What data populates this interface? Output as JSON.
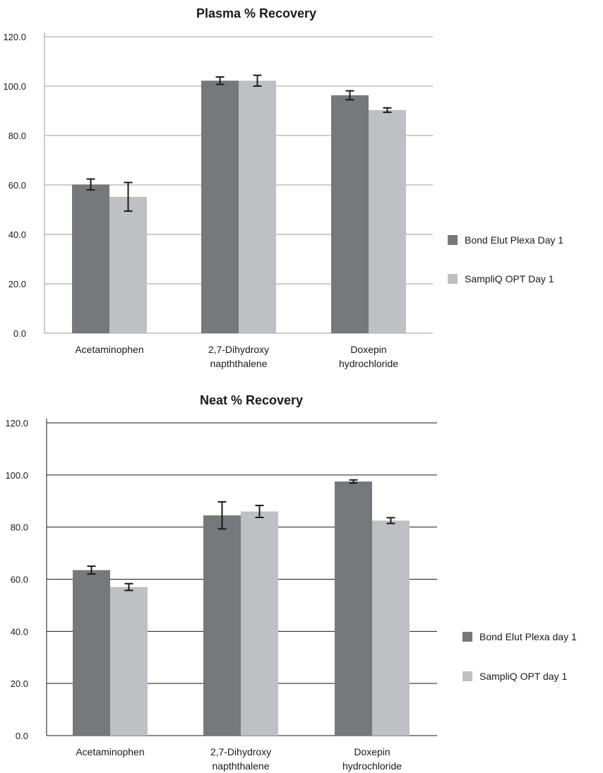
{
  "chart_data": [
    {
      "type": "bar",
      "title": "Plasma % Recovery",
      "categories": [
        [
          "Acetaminophen"
        ],
        [
          "2,7-Dihydroxy",
          "napththalene"
        ],
        [
          "Doxepin",
          "hydrochloride"
        ]
      ],
      "series": [
        {
          "name": "Bond Elut Plexa Day 1",
          "values": [
            60.2,
            102.2,
            96.3
          ],
          "error": [
            2.2,
            1.5,
            1.8
          ]
        },
        {
          "name": "SampliQ OPT Day 1",
          "values": [
            55.2,
            102.2,
            90.3
          ],
          "error": [
            5.8,
            2.2,
            0.9
          ]
        }
      ],
      "yticks": [
        "0.0",
        "20.0",
        "40.0",
        "60.0",
        "80.0",
        "100.0",
        "120.0"
      ],
      "ylim": [
        0,
        120
      ],
      "grid": true,
      "legend_position": "right",
      "colors": [
        "#77787b",
        "#bfc0c3"
      ],
      "gridline_color": "#9b9b9b",
      "xlabel": "",
      "ylabel": ""
    },
    {
      "type": "bar",
      "title": "Neat % Recovery",
      "categories": [
        [
          "Acetaminophen"
        ],
        [
          "2,7-Dihydroxy",
          "napththalene"
        ],
        [
          "Doxepin",
          "hydrochloride"
        ]
      ],
      "series": [
        {
          "name": "Bond Elut Plexa day 1",
          "values": [
            63.5,
            84.5,
            97.5
          ],
          "error": [
            1.5,
            5.2,
            0.6
          ]
        },
        {
          "name": "SampliQ OPT day 1",
          "values": [
            57.0,
            86.0,
            82.5
          ],
          "error": [
            1.3,
            2.3,
            1.1
          ]
        }
      ],
      "yticks": [
        "0.0",
        "20.0",
        "40.0",
        "60.0",
        "80.0",
        "100.0",
        "120.0"
      ],
      "ylim": [
        0,
        120
      ],
      "grid": true,
      "legend_position": "right",
      "colors": [
        "#77787b",
        "#bfc0c3"
      ],
      "gridline_color": "#1a1a1a",
      "xlabel": "",
      "ylabel": ""
    }
  ]
}
